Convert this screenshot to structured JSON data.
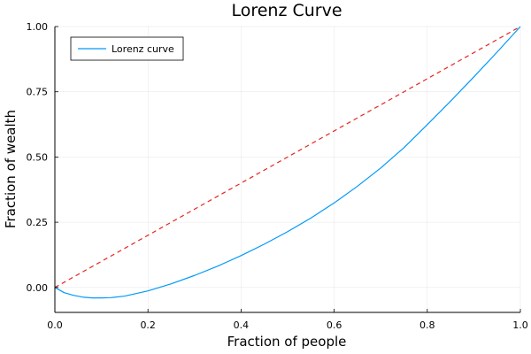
{
  "chart_data": {
    "type": "line",
    "title": "Lorenz Curve",
    "xlabel": "Fraction of people",
    "ylabel": "Fraction of wealth",
    "xlim": [
      0,
      1
    ],
    "ylim": [
      -0.0956,
      1.0
    ],
    "xticks": [
      0.0,
      0.2,
      0.4,
      0.6,
      0.8,
      1.0
    ],
    "xtick_labels": [
      "0.0",
      "0.2",
      "0.4",
      "0.6",
      "0.8",
      "1.0"
    ],
    "yticks": [
      0.0,
      0.25,
      0.5,
      0.75,
      1.0
    ],
    "ytick_labels": [
      "0.00",
      "0.25",
      "0.50",
      "0.75",
      "1.00"
    ],
    "grid": true,
    "legend_position": "top-left",
    "series": [
      {
        "name": "Lorenz curve",
        "color": "#009af9",
        "style": "solid",
        "x": [
          0,
          0.02,
          0.04,
          0.06,
          0.08,
          0.1,
          0.12,
          0.15,
          0.2,
          0.25,
          0.3,
          0.35,
          0.4,
          0.45,
          0.5,
          0.55,
          0.6,
          0.65,
          0.7,
          0.75,
          0.8,
          0.85,
          0.9,
          0.95,
          1.0
        ],
        "y": [
          0,
          -0.02,
          -0.03,
          -0.037,
          -0.04,
          -0.04,
          -0.039,
          -0.033,
          -0.013,
          0.014,
          0.046,
          0.082,
          0.122,
          0.166,
          0.214,
          0.266,
          0.324,
          0.388,
          0.458,
          0.536,
          0.624,
          0.714,
          0.807,
          0.902,
          1.0
        ]
      },
      {
        "color": "#e6261e",
        "style": "dashed",
        "x": [
          0,
          1
        ],
        "y": [
          0,
          1
        ]
      }
    ]
  }
}
